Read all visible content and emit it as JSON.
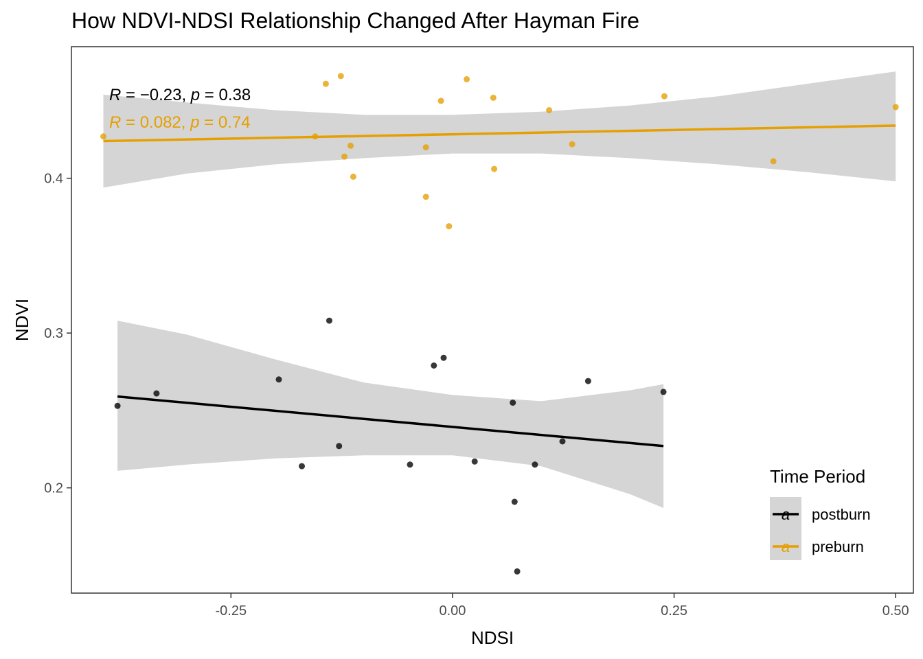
{
  "chart_data": {
    "type": "scatter",
    "title": "How NDVI-NDSI Relationship Changed After Hayman Fire",
    "xlabel": "NDSI",
    "ylabel": "NDVI",
    "xlim": [
      -0.43,
      0.52
    ],
    "ylim": [
      0.132,
      0.485
    ],
    "x_ticks": [
      -0.25,
      0.0,
      0.25,
      0.5
    ],
    "x_tick_labels": [
      "-0.25",
      "0.00",
      "0.25",
      "0.50"
    ],
    "y_ticks": [
      0.2,
      0.3,
      0.4
    ],
    "y_tick_labels": [
      "0.2",
      "0.3",
      "0.4"
    ],
    "grid": false,
    "legend": {
      "title": "Time Period",
      "position": "bottom-right",
      "entries": [
        "postburn",
        "preburn"
      ],
      "key_glyph": "a"
    },
    "series": [
      {
        "name": "postburn",
        "color": "#000000",
        "points": [
          {
            "x": -0.378,
            "y": 0.253
          },
          {
            "x": -0.334,
            "y": 0.261
          },
          {
            "x": -0.196,
            "y": 0.27
          },
          {
            "x": -0.17,
            "y": 0.214
          },
          {
            "x": -0.139,
            "y": 0.308
          },
          {
            "x": -0.128,
            "y": 0.227
          },
          {
            "x": -0.048,
            "y": 0.215
          },
          {
            "x": -0.021,
            "y": 0.279
          },
          {
            "x": -0.01,
            "y": 0.284
          },
          {
            "x": 0.025,
            "y": 0.217
          },
          {
            "x": 0.068,
            "y": 0.255
          },
          {
            "x": 0.07,
            "y": 0.191
          },
          {
            "x": 0.073,
            "y": 0.146
          },
          {
            "x": 0.093,
            "y": 0.215
          },
          {
            "x": 0.124,
            "y": 0.23
          },
          {
            "x": 0.153,
            "y": 0.269
          },
          {
            "x": 0.238,
            "y": 0.262
          }
        ],
        "fit": {
          "x": [
            -0.378,
            0.238
          ],
          "y": [
            0.259,
            0.227
          ]
        },
        "band": {
          "x": [
            -0.378,
            -0.3,
            -0.2,
            -0.1,
            0.0,
            0.1,
            0.2,
            0.238
          ],
          "lower": [
            0.211,
            0.215,
            0.219,
            0.221,
            0.221,
            0.214,
            0.196,
            0.187
          ],
          "upper": [
            0.308,
            0.299,
            0.283,
            0.268,
            0.26,
            0.256,
            0.263,
            0.267
          ]
        },
        "annotation": {
          "r": "−0.23",
          "p": "0.38"
        }
      },
      {
        "name": "preburn",
        "color": "#E69F00",
        "points": [
          {
            "x": -0.394,
            "y": 0.427
          },
          {
            "x": -0.155,
            "y": 0.427
          },
          {
            "x": -0.143,
            "y": 0.461
          },
          {
            "x": -0.126,
            "y": 0.466
          },
          {
            "x": -0.122,
            "y": 0.414
          },
          {
            "x": -0.115,
            "y": 0.421
          },
          {
            "x": -0.112,
            "y": 0.401
          },
          {
            "x": -0.03,
            "y": 0.388
          },
          {
            "x": -0.03,
            "y": 0.42
          },
          {
            "x": -0.013,
            "y": 0.45
          },
          {
            "x": -0.004,
            "y": 0.369
          },
          {
            "x": 0.016,
            "y": 0.464
          },
          {
            "x": 0.046,
            "y": 0.452
          },
          {
            "x": 0.047,
            "y": 0.406
          },
          {
            "x": 0.109,
            "y": 0.444
          },
          {
            "x": 0.135,
            "y": 0.422
          },
          {
            "x": 0.239,
            "y": 0.453
          },
          {
            "x": 0.362,
            "y": 0.411
          },
          {
            "x": 0.5,
            "y": 0.446
          }
        ],
        "fit": {
          "x": [
            -0.394,
            0.5
          ],
          "y": [
            0.424,
            0.434
          ]
        },
        "band": {
          "x": [
            -0.394,
            -0.3,
            -0.2,
            -0.1,
            0.0,
            0.1,
            0.2,
            0.3,
            0.4,
            0.5
          ],
          "lower": [
            0.394,
            0.403,
            0.409,
            0.413,
            0.416,
            0.416,
            0.413,
            0.409,
            0.404,
            0.398
          ],
          "upper": [
            0.454,
            0.449,
            0.444,
            0.441,
            0.441,
            0.443,
            0.447,
            0.453,
            0.461,
            0.469
          ]
        },
        "annotation": {
          "r": "0.082",
          "p": "0.74"
        }
      }
    ]
  }
}
